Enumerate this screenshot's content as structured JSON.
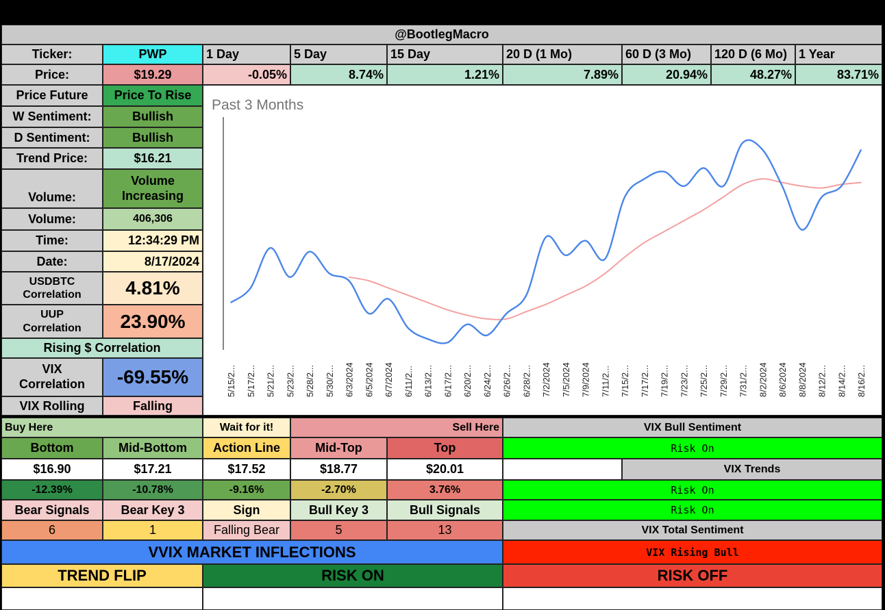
{
  "header": {
    "title": "@BootlegMacro"
  },
  "ticker": {
    "label": "Ticker:",
    "value": "PWP"
  },
  "periods": [
    "1 Day",
    "5 Day",
    "15 Day",
    "20 D (1 Mo)",
    "60 D (3 Mo)",
    "120 D (6 Mo)",
    "1 Year"
  ],
  "price": {
    "label": "Price:",
    "value": "$19.29"
  },
  "returns": [
    "-0.05%",
    "8.74%",
    "1.21%",
    "7.89%",
    "20.94%",
    "48.27%",
    "83.71%"
  ],
  "info": [
    {
      "label": "Price Future",
      "value": "Price To Rise"
    },
    {
      "label": "W Sentiment:",
      "value": "Bullish"
    },
    {
      "label": "D Sentiment:",
      "value": "Bullish"
    },
    {
      "label": "Trend Price:",
      "value": "$16.21"
    },
    {
      "label": "Volume:",
      "value": "Volume Increasing"
    },
    {
      "label": "Volume:",
      "value": "406,306"
    },
    {
      "label": "Time:",
      "value": "12:34:29 PM"
    },
    {
      "label": "Date:",
      "value": "8/17/2024"
    },
    {
      "label": "USDBTC Correlation",
      "value": "4.81%"
    },
    {
      "label": "UUP Correlation",
      "value": "23.90%"
    },
    {
      "label": "Rising $ Correlation"
    },
    {
      "label": "VIX Correlation",
      "value": "-69.55%"
    },
    {
      "label": "VIX Rolling",
      "value": "Falling"
    }
  ],
  "levels": {
    "buy_here": "Buy Here",
    "wait": "Wait for it!",
    "sell_here": "Sell Here",
    "headers": [
      "Bottom",
      "Mid-Bottom",
      "Action Line",
      "Mid-Top",
      "Top"
    ],
    "prices": [
      "$16.90",
      "$17.21",
      "$17.52",
      "$18.77",
      "$20.01"
    ],
    "pcts": [
      "-12.39%",
      "-10.78%",
      "-9.16%",
      "-2.70%",
      "3.76%"
    ]
  },
  "signals": {
    "headers": [
      "Bear Signals",
      "Bear Key 3",
      "Sign",
      "Bull Key 3",
      "Bull Signals"
    ],
    "values": [
      "6",
      "1",
      "Falling Bear",
      "5",
      "13"
    ]
  },
  "vix": {
    "bull_sentiment_label": "VIX Bull Sentiment",
    "bull_sentiment_value": "Risk On",
    "trends_label": "VIX Trends",
    "trend_values": [
      "Risk On",
      "Risk On"
    ],
    "total_label": "VIX Total Sentiment",
    "total_value": "VIX Rising Bull"
  },
  "vvix": {
    "title": "VVIX MARKET INFLECTIONS",
    "trend_flip": "TREND FLIP",
    "risk_on": "RISK ON",
    "risk_off": "RISK OFF"
  },
  "colors": {
    "price_line": "#4a86e8",
    "trend_line": "#f4a0a0",
    "risk_on_green": "#00ff00",
    "vvix_blue": "#4285f4",
    "risk_off_red": "#ea4335"
  },
  "chart_data": {
    "type": "line",
    "title": "Past 3 Months",
    "xlabel": "",
    "ylabel": "",
    "grid": false,
    "ylim": [
      13.8,
      20.2
    ],
    "x_ticks": [
      "5/15/2...",
      "5/17/2...",
      "5/21/2...",
      "5/23/2...",
      "5/28/2...",
      "5/30/2...",
      "6/3/2024",
      "6/5/2024",
      "6/7/2024",
      "6/11/2...",
      "6/13/2...",
      "6/17/2...",
      "6/20/2...",
      "6/24/2...",
      "6/26/2...",
      "6/28/2...",
      "7/2/2024",
      "7/5/2024",
      "7/9/2024",
      "7/11/2...",
      "7/15/2...",
      "7/17/2...",
      "7/19/2...",
      "7/23/2...",
      "7/25/2...",
      "7/29/2...",
      "7/31/2...",
      "8/2/2024",
      "8/6/2024",
      "8/8/2024",
      "8/12/2...",
      "8/14/2...",
      "8/16/2..."
    ],
    "series": [
      {
        "name": "Price",
        "values": [
          15.1,
          15.5,
          16.6,
          15.8,
          16.5,
          15.9,
          15.7,
          14.8,
          15.2,
          14.4,
          14.1,
          14.0,
          14.5,
          14.2,
          14.8,
          15.3,
          16.9,
          16.4,
          16.8,
          16.3,
          18.0,
          18.5,
          18.7,
          18.3,
          18.8,
          18.3,
          19.5,
          19.3,
          18.3,
          17.1,
          18.0,
          18.3,
          19.3
        ]
      },
      {
        "name": "Trend",
        "values": [
          null,
          null,
          null,
          null,
          null,
          null,
          15.8,
          15.7,
          15.5,
          15.3,
          15.1,
          14.9,
          14.75,
          14.65,
          14.65,
          14.85,
          15.05,
          15.3,
          15.55,
          15.9,
          16.35,
          16.75,
          17.05,
          17.35,
          17.65,
          18.0,
          18.35,
          18.5,
          18.4,
          18.3,
          18.25,
          18.35,
          18.4
        ]
      }
    ]
  }
}
